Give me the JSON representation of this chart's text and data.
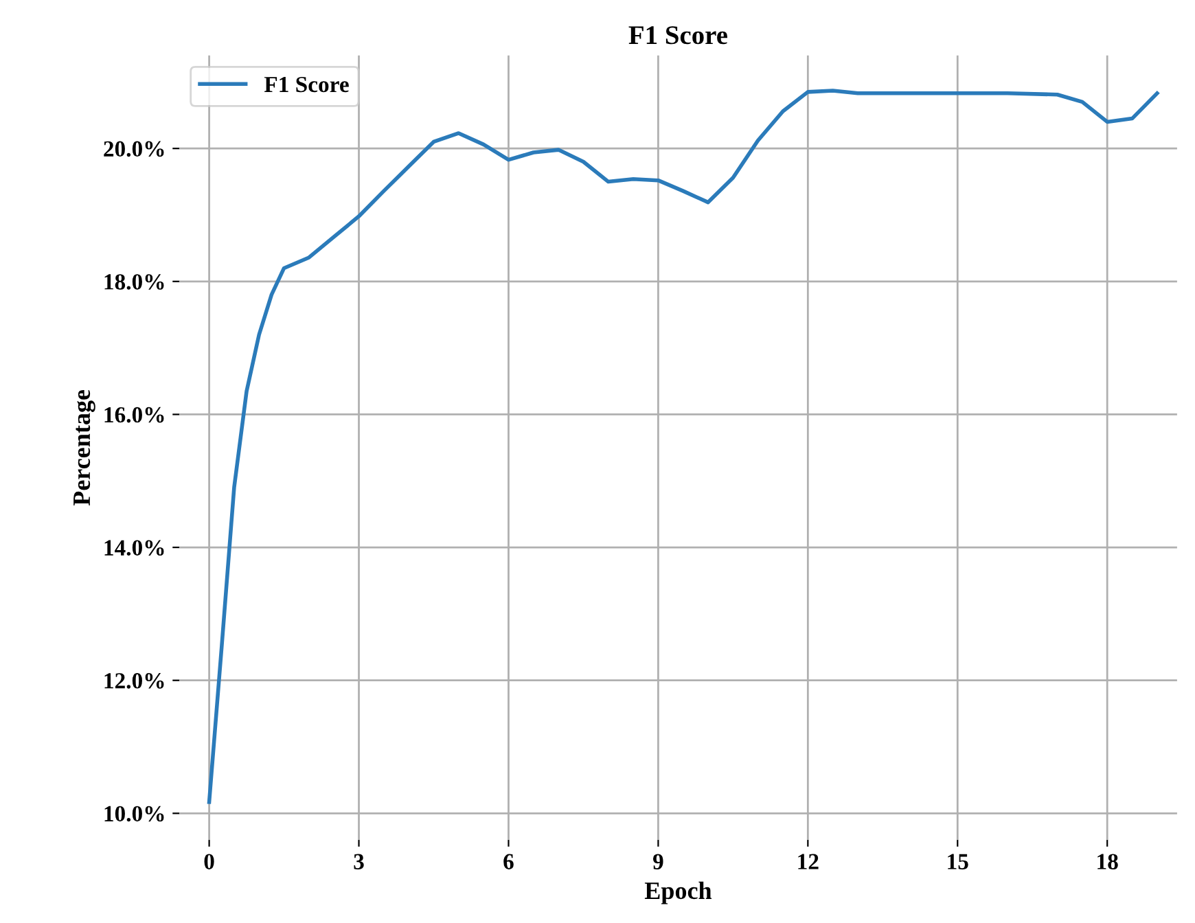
{
  "chart_data": {
    "type": "line",
    "title": "F1 Score",
    "xlabel": "Epoch",
    "ylabel": "Percentage",
    "x": [
      0,
      0.25,
      0.5,
      0.75,
      1,
      1.25,
      1.5,
      2,
      2.5,
      3,
      3.5,
      4,
      4.5,
      5,
      5.5,
      6,
      6.5,
      7,
      7.5,
      8,
      8.5,
      9,
      9.5,
      10,
      10.5,
      11,
      11.5,
      12,
      12.5,
      13,
      14,
      15,
      16,
      17,
      17.5,
      18,
      18.5,
      19
    ],
    "series": [
      {
        "name": "F1 Score",
        "color": "#2b7bba",
        "values": [
          10.17,
          12.5,
          14.9,
          16.35,
          17.2,
          17.8,
          18.2,
          18.36,
          18.67,
          18.98,
          19.36,
          19.73,
          20.1,
          20.23,
          20.06,
          19.83,
          19.94,
          19.98,
          19.8,
          19.5,
          19.54,
          19.52,
          19.36,
          19.19,
          19.56,
          20.12,
          20.56,
          20.85,
          20.87,
          20.83,
          20.83,
          20.83,
          20.83,
          20.81,
          20.7,
          20.4,
          20.45,
          20.83
        ]
      }
    ],
    "xlim": [
      -0.6,
      19.4
    ],
    "ylim": [
      9.6,
      21.4
    ],
    "xticks": [
      0,
      3,
      6,
      9,
      12,
      15,
      18
    ],
    "yticks": [
      {
        "value": 10,
        "label": "10.0%"
      },
      {
        "value": 12,
        "label": "12.0%"
      },
      {
        "value": 14,
        "label": "14.0%"
      },
      {
        "value": 16,
        "label": "16.0%"
      },
      {
        "value": 18,
        "label": "18.0%"
      },
      {
        "value": 20,
        "label": "20.0%"
      }
    ],
    "grid": true,
    "legend": "top left",
    "marker": "none",
    "line_style": "solid"
  }
}
